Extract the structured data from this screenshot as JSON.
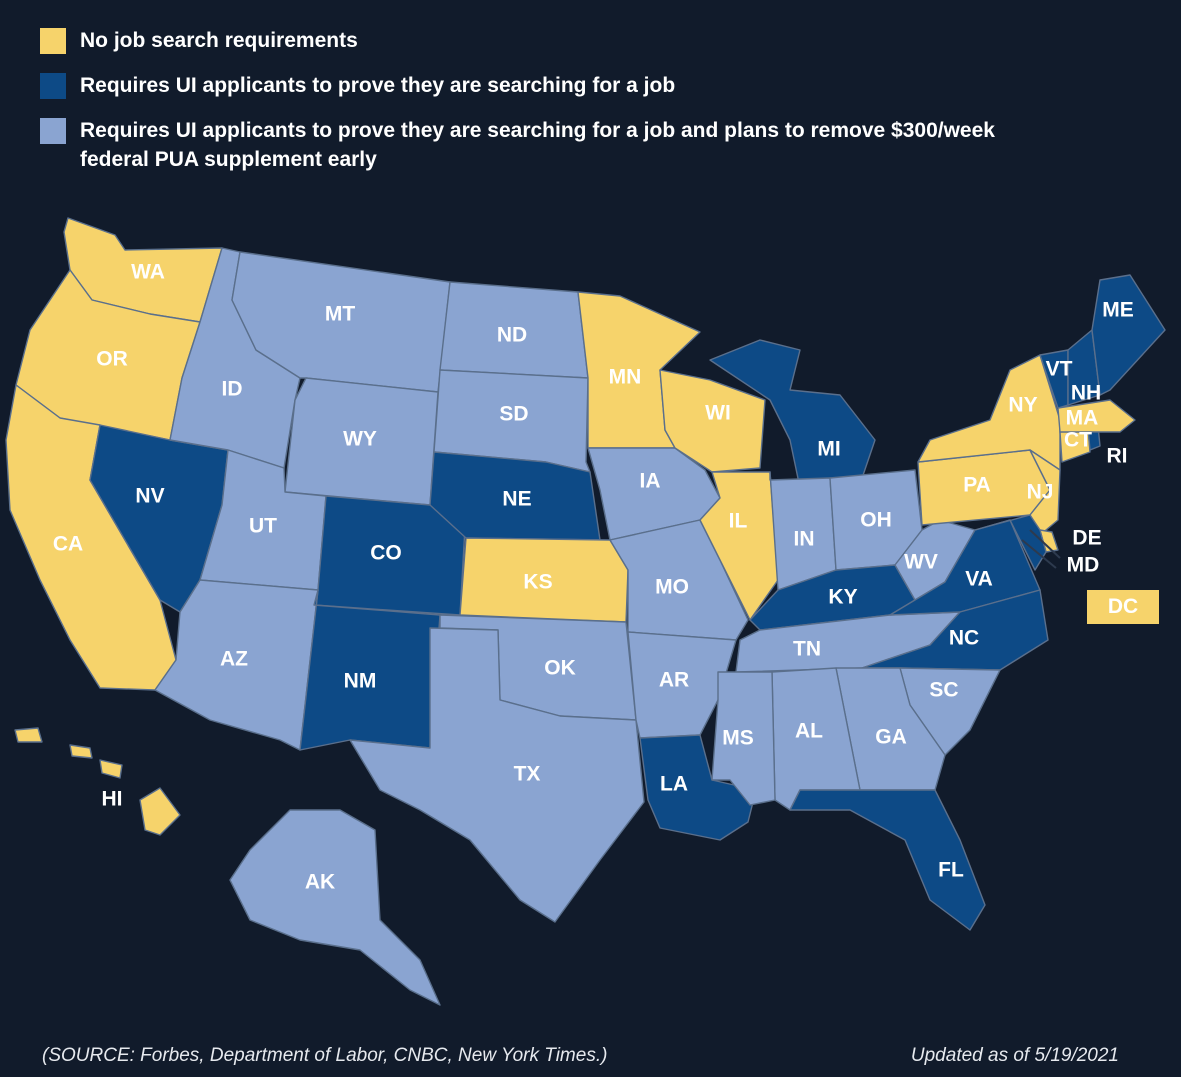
{
  "legend": {
    "items": [
      {
        "label": "No job search requirements",
        "color": "#f6d36b"
      },
      {
        "label": "Requires UI applicants to prove they are searching for a job",
        "color": "#0d4a86"
      },
      {
        "label": "Requires UI applicants to prove they are searching for a job and plans to remove $300/week federal PUA supplement early",
        "color": "#8aa4d1"
      }
    ]
  },
  "colors": {
    "background": "#111b2b",
    "no_requirement": "#f6d36b",
    "requires_search": "#0d4a86",
    "requires_search_and_removes_pua": "#8aa4d1"
  },
  "states": {
    "WA": {
      "label": "WA",
      "category": "no_requirement"
    },
    "OR": {
      "label": "OR",
      "category": "no_requirement"
    },
    "CA": {
      "label": "CA",
      "category": "no_requirement"
    },
    "HI": {
      "label": "HI",
      "category": "no_requirement"
    },
    "MN": {
      "label": "MN",
      "category": "no_requirement"
    },
    "WI": {
      "label": "WI",
      "category": "no_requirement"
    },
    "IL": {
      "label": "IL",
      "category": "no_requirement"
    },
    "KS": {
      "label": "KS",
      "category": "no_requirement"
    },
    "NY": {
      "label": "NY",
      "category": "no_requirement"
    },
    "PA": {
      "label": "PA",
      "category": "no_requirement"
    },
    "NJ": {
      "label": "NJ",
      "category": "no_requirement"
    },
    "DE": {
      "label": "DE",
      "category": "no_requirement"
    },
    "MA": {
      "label": "MA",
      "category": "no_requirement"
    },
    "CT": {
      "label": "CT",
      "category": "no_requirement"
    },
    "DC": {
      "label": "DC",
      "category": "no_requirement"
    },
    "NV": {
      "label": "NV",
      "category": "requires_search"
    },
    "CO": {
      "label": "CO",
      "category": "requires_search"
    },
    "NM": {
      "label": "NM",
      "category": "requires_search"
    },
    "NE": {
      "label": "NE",
      "category": "requires_search"
    },
    "MI": {
      "label": "MI",
      "category": "requires_search"
    },
    "LA": {
      "label": "LA",
      "category": "requires_search"
    },
    "KY": {
      "label": "KY",
      "category": "requires_search"
    },
    "VA": {
      "label": "VA",
      "category": "requires_search"
    },
    "NC": {
      "label": "NC",
      "category": "requires_search"
    },
    "FL": {
      "label": "FL",
      "category": "requires_search"
    },
    "ME": {
      "label": "ME",
      "category": "requires_search"
    },
    "VT": {
      "label": "VT",
      "category": "requires_search"
    },
    "NH": {
      "label": "NH",
      "category": "requires_search"
    },
    "RI": {
      "label": "RI",
      "category": "requires_search"
    },
    "MD": {
      "label": "MD",
      "category": "requires_search"
    },
    "ID": {
      "label": "ID",
      "category": "requires_search_and_removes_pua"
    },
    "MT": {
      "label": "MT",
      "category": "requires_search_and_removes_pua"
    },
    "WY": {
      "label": "WY",
      "category": "requires_search_and_removes_pua"
    },
    "UT": {
      "label": "UT",
      "category": "requires_search_and_removes_pua"
    },
    "AZ": {
      "label": "AZ",
      "category": "requires_search_and_removes_pua"
    },
    "ND": {
      "label": "ND",
      "category": "requires_search_and_removes_pua"
    },
    "SD": {
      "label": "SD",
      "category": "requires_search_and_removes_pua"
    },
    "OK": {
      "label": "OK",
      "category": "requires_search_and_removes_pua"
    },
    "TX": {
      "label": "TX",
      "category": "requires_search_and_removes_pua"
    },
    "IA": {
      "label": "IA",
      "category": "requires_search_and_removes_pua"
    },
    "MO": {
      "label": "MO",
      "category": "requires_search_and_removes_pua"
    },
    "AR": {
      "label": "AR",
      "category": "requires_search_and_removes_pua"
    },
    "MS": {
      "label": "MS",
      "category": "requires_search_and_removes_pua"
    },
    "AL": {
      "label": "AL",
      "category": "requires_search_and_removes_pua"
    },
    "GA": {
      "label": "GA",
      "category": "requires_search_and_removes_pua"
    },
    "SC": {
      "label": "SC",
      "category": "requires_search_and_removes_pua"
    },
    "TN": {
      "label": "TN",
      "category": "requires_search_and_removes_pua"
    },
    "IN": {
      "label": "IN",
      "category": "requires_search_and_removes_pua"
    },
    "OH": {
      "label": "OH",
      "category": "requires_search_and_removes_pua"
    },
    "WV": {
      "label": "WV",
      "category": "requires_search_and_removes_pua"
    },
    "AK": {
      "label": "AK",
      "category": "requires_search_and_removes_pua"
    }
  },
  "footer": {
    "source": "(SOURCE: Forbes, Department of Labor, CNBC, New York Times.)",
    "updated": "Updated as of 5/19/2021"
  }
}
